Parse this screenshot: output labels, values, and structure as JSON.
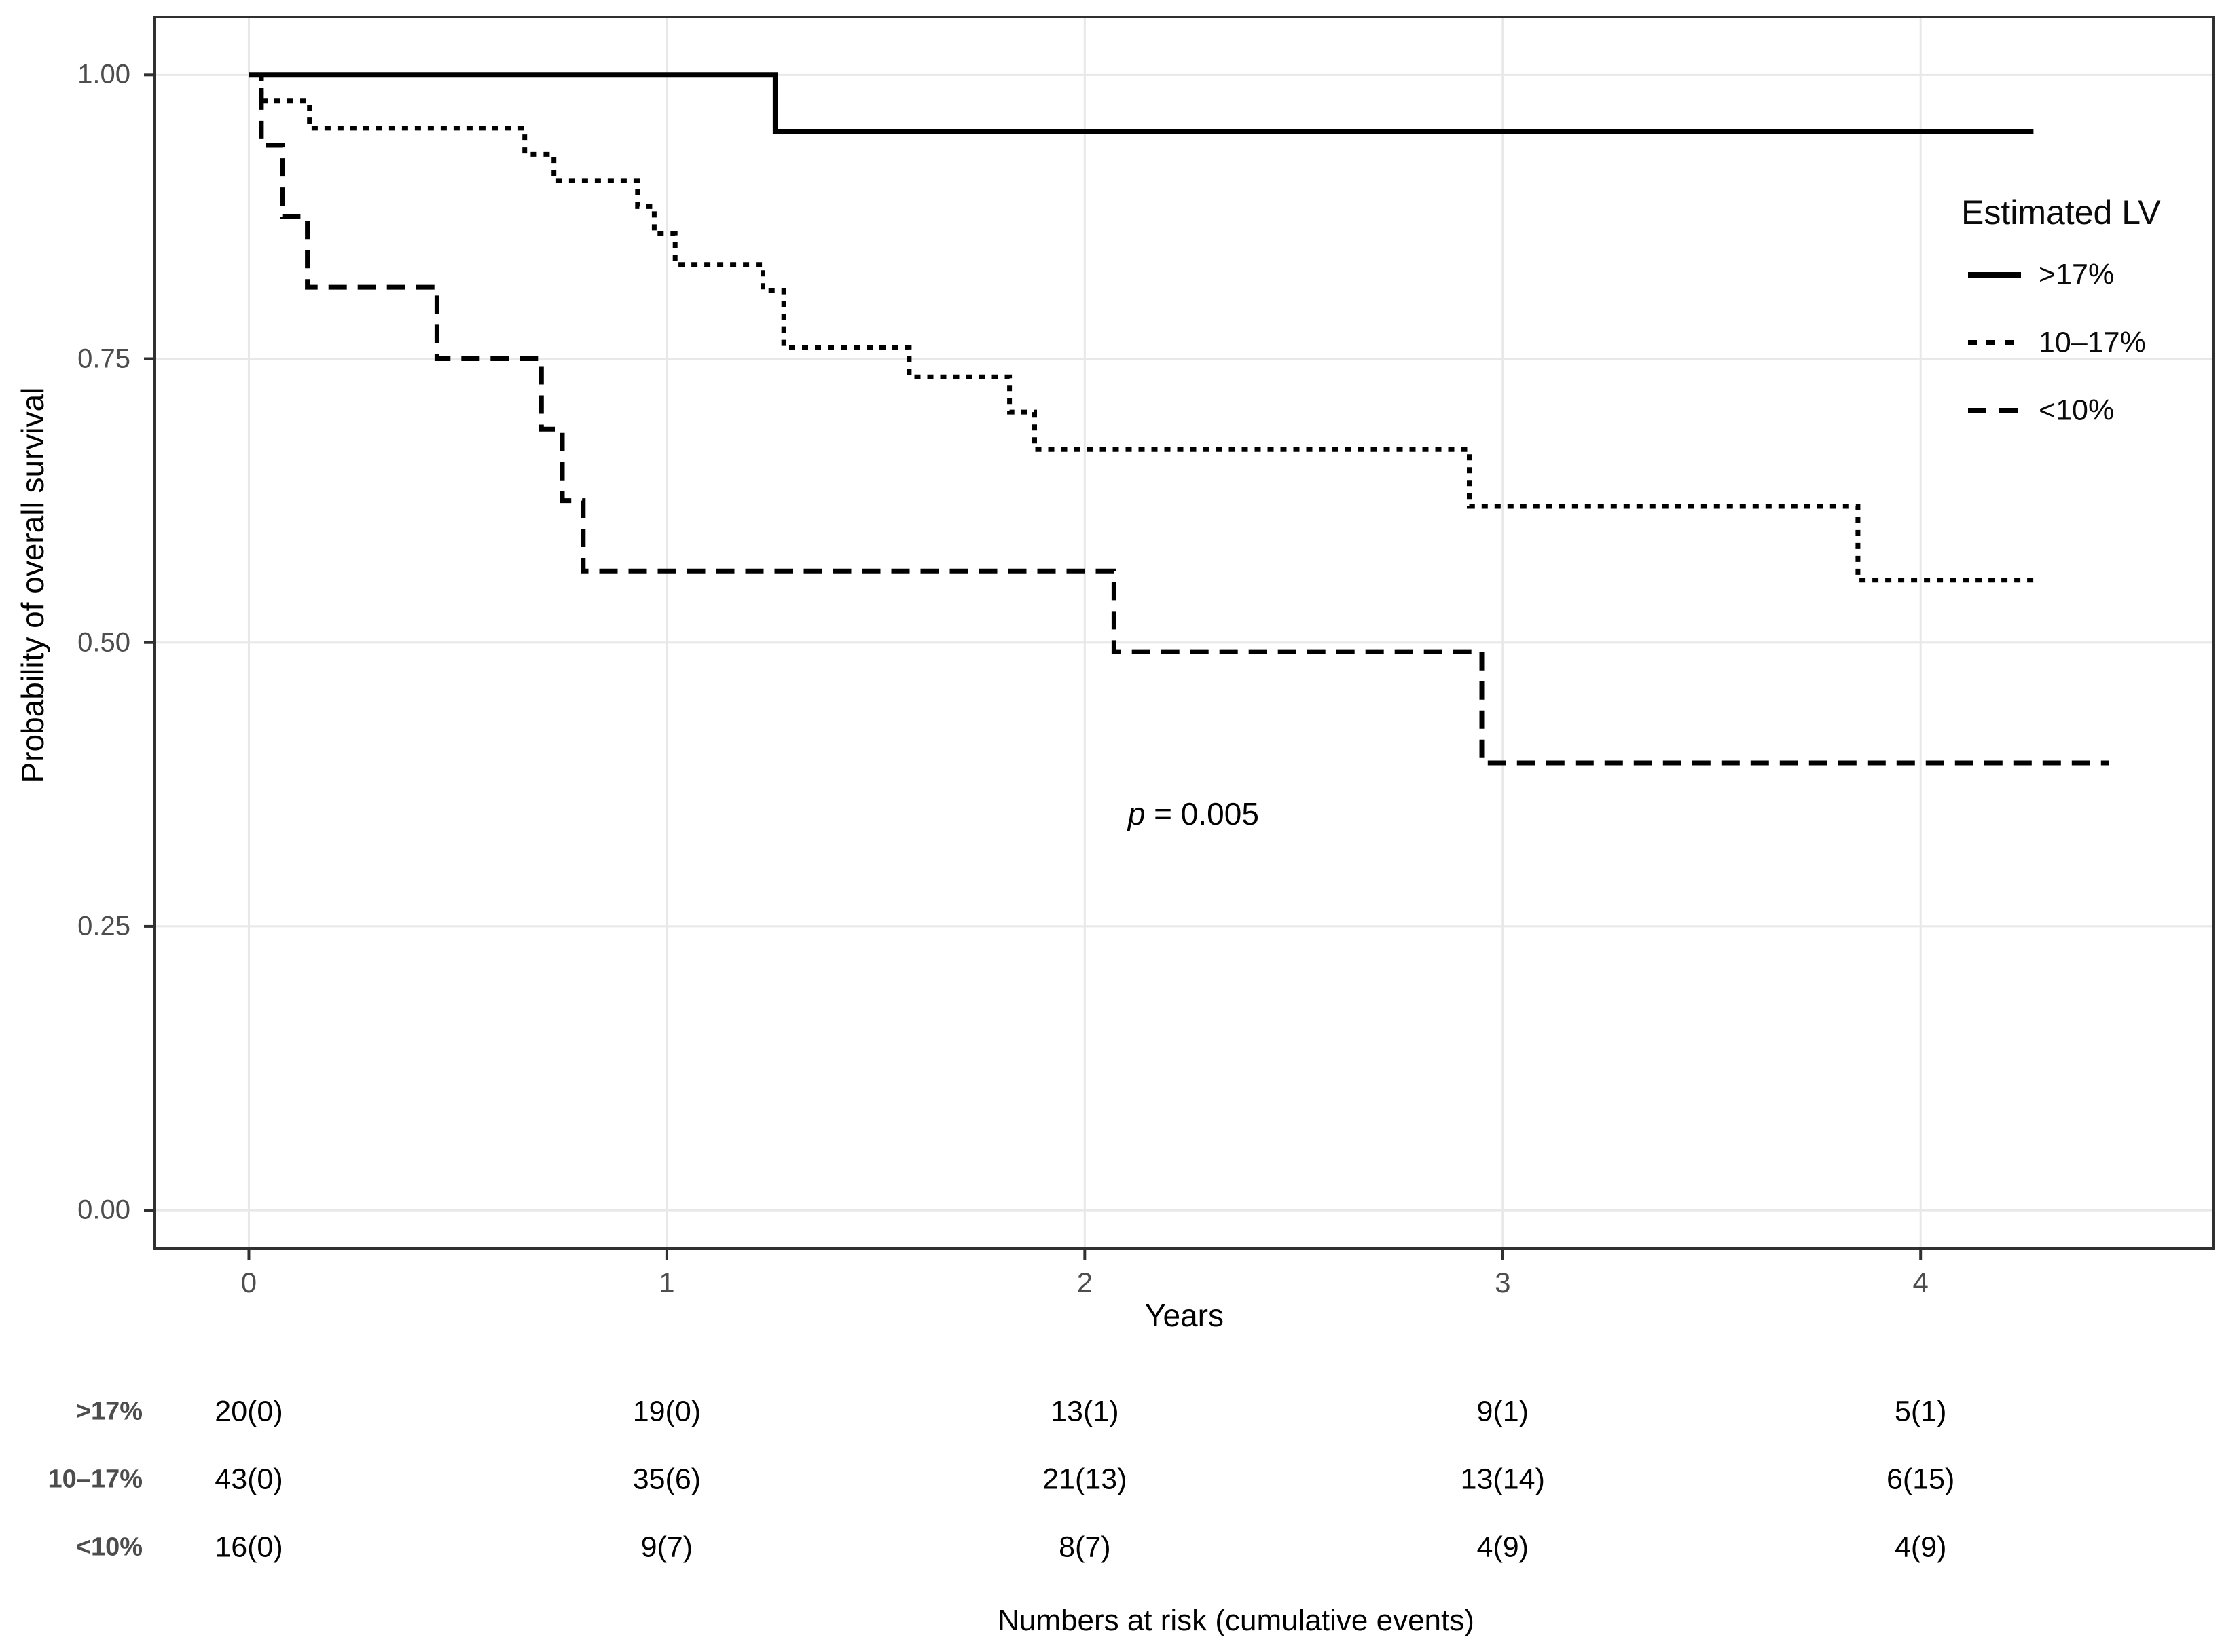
{
  "chart_data": {
    "type": "line",
    "subtype": "kaplan-meier-step",
    "title": "",
    "xlabel": "Years",
    "ylabel": "Probability of overall survival",
    "xlim": [
      -0.225,
      4.7
    ],
    "ylim": [
      -0.034,
      1.051
    ],
    "xticks": [
      0,
      1,
      2,
      3,
      4
    ],
    "xtick_labels": [
      "0",
      "1",
      "2",
      "3",
      "4"
    ],
    "yticks": [
      0,
      0.25,
      0.5,
      0.75,
      1
    ],
    "ytick_labels": [
      "0.00",
      "0.25",
      "0.50",
      "0.75",
      "1.00"
    ],
    "grid": "major-only",
    "legend_position": "inside-top-right",
    "annotation": {
      "label": "p = 0.005",
      "x": 2.26,
      "y": 0.349
    },
    "series": [
      {
        "name": ">17%",
        "line_style": "solid",
        "color": "#000000",
        "points": [
          [
            0,
            1.0
          ],
          [
            1.26,
            1.0
          ],
          [
            1.26,
            0.95
          ],
          [
            4.27,
            0.95
          ]
        ]
      },
      {
        "name": "10–17%",
        "line_style": "dotted",
        "color": "#000000",
        "points": [
          [
            0,
            1.0
          ],
          [
            0.03,
            1.0
          ],
          [
            0.03,
            0.977
          ],
          [
            0.145,
            0.977
          ],
          [
            0.145,
            0.953
          ],
          [
            0.66,
            0.953
          ],
          [
            0.66,
            0.93
          ],
          [
            0.73,
            0.93
          ],
          [
            0.73,
            0.907
          ],
          [
            0.93,
            0.907
          ],
          [
            0.93,
            0.884
          ],
          [
            0.97,
            0.884
          ],
          [
            0.97,
            0.86
          ],
          [
            1.02,
            0.86
          ],
          [
            1.02,
            0.833
          ],
          [
            1.23,
            0.833
          ],
          [
            1.23,
            0.81
          ],
          [
            1.28,
            0.81
          ],
          [
            1.28,
            0.76
          ],
          [
            1.58,
            0.76
          ],
          [
            1.58,
            0.734
          ],
          [
            1.82,
            0.734
          ],
          [
            1.82,
            0.703
          ],
          [
            1.88,
            0.703
          ],
          [
            1.88,
            0.67
          ],
          [
            2.92,
            0.67
          ],
          [
            2.92,
            0.62
          ],
          [
            3.85,
            0.62
          ],
          [
            3.85,
            0.555
          ],
          [
            4.27,
            0.555
          ]
        ]
      },
      {
        "name": "<10%",
        "line_style": "dashed",
        "color": "#000000",
        "points": [
          [
            0,
            1.0
          ],
          [
            0.03,
            1.0
          ],
          [
            0.03,
            0.938
          ],
          [
            0.08,
            0.938
          ],
          [
            0.08,
            0.875
          ],
          [
            0.14,
            0.875
          ],
          [
            0.14,
            0.813
          ],
          [
            0.45,
            0.813
          ],
          [
            0.45,
            0.75
          ],
          [
            0.7,
            0.75
          ],
          [
            0.7,
            0.688
          ],
          [
            0.75,
            0.688
          ],
          [
            0.75,
            0.625
          ],
          [
            0.8,
            0.625
          ],
          [
            0.8,
            0.563
          ],
          [
            2.07,
            0.563
          ],
          [
            2.07,
            0.492
          ],
          [
            2.95,
            0.492
          ],
          [
            2.95,
            0.394
          ],
          [
            4.45,
            0.394
          ]
        ]
      }
    ]
  },
  "legend": {
    "title": "Estimated LV",
    "items": [
      {
        "label": ">17%",
        "style": "solid"
      },
      {
        "label": "10–17%",
        "style": "dotted"
      },
      {
        "label": "<10%",
        "style": "dashed"
      }
    ]
  },
  "annotation_p": {
    "symbol": "p",
    "rest": " = 0.005"
  },
  "risk_table": {
    "caption": "Numbers at risk (cumulative events)",
    "rows": [
      {
        "label": ">17%",
        "values": [
          "20(0)",
          "19(0)",
          "13(1)",
          "9(1)",
          "5(1)"
        ]
      },
      {
        "label": "10–17%",
        "values": [
          "43(0)",
          "35(6)",
          "21(13)",
          "13(14)",
          "6(15)"
        ]
      },
      {
        "label": "<10%",
        "values": [
          "16(0)",
          "9(7)",
          "8(7)",
          "4(9)",
          "4(9)"
        ]
      }
    ]
  },
  "colors": {
    "curve": "#000000",
    "grid": "#e8e8e8",
    "border": "#303030",
    "tick_text": "#4d4d4d"
  }
}
